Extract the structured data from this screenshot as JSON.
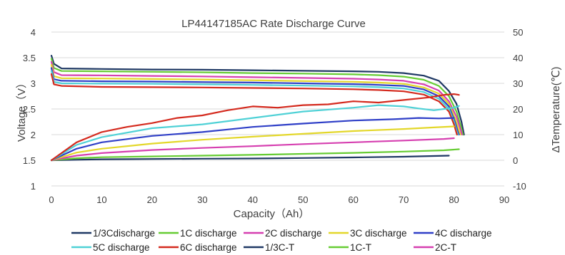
{
  "chart_data": {
    "type": "line",
    "title": "LP44147185AC Rate Discharge Curve",
    "xlabel": "Capacity（Ah）",
    "ylabel": "Voltage（V）",
    "y2label": "ΔTemperature(℃)",
    "xlim": [
      0,
      90
    ],
    "ylim": [
      1,
      4
    ],
    "y2lim": [
      -10,
      50
    ],
    "xticks": [
      "0",
      "10",
      "20",
      "30",
      "40",
      "50",
      "60",
      "70",
      "80",
      "90"
    ],
    "yticks": [
      "1",
      "1.5",
      "2",
      "2.5",
      "3",
      "3.5",
      "4"
    ],
    "y2ticks": [
      "-10",
      "0",
      "10",
      "20",
      "30",
      "40",
      "50"
    ],
    "grid": "horizontal",
    "legend_position": "bottom",
    "series": [
      {
        "name": "1/3Cdischarge",
        "axis": "left",
        "color": "#1f3864",
        "points": [
          [
            0,
            3.54
          ],
          [
            0.5,
            3.38
          ],
          [
            2,
            3.29
          ],
          [
            10,
            3.28
          ],
          [
            20,
            3.27
          ],
          [
            30,
            3.265
          ],
          [
            40,
            3.255
          ],
          [
            50,
            3.245
          ],
          [
            60,
            3.235
          ],
          [
            65,
            3.225
          ],
          [
            70,
            3.2
          ],
          [
            74,
            3.15
          ],
          [
            77,
            3.05
          ],
          [
            79,
            2.85
          ],
          [
            80.5,
            2.6
          ],
          [
            81.5,
            2.25
          ],
          [
            82,
            2.0
          ]
        ]
      },
      {
        "name": "1C discharge",
        "axis": "left",
        "color": "#66cc33",
        "points": [
          [
            0,
            3.48
          ],
          [
            0.5,
            3.3
          ],
          [
            2,
            3.24
          ],
          [
            10,
            3.235
          ],
          [
            20,
            3.225
          ],
          [
            30,
            3.215
          ],
          [
            40,
            3.2
          ],
          [
            50,
            3.19
          ],
          [
            60,
            3.175
          ],
          [
            65,
            3.16
          ],
          [
            70,
            3.13
          ],
          [
            74,
            3.07
          ],
          [
            77,
            2.95
          ],
          [
            79,
            2.75
          ],
          [
            80.5,
            2.45
          ],
          [
            81.4,
            2.15
          ],
          [
            81.8,
            2.0
          ]
        ]
      },
      {
        "name": "2C discharge",
        "axis": "left",
        "color": "#d63fb0",
        "points": [
          [
            0,
            3.42
          ],
          [
            0.5,
            3.22
          ],
          [
            2,
            3.16
          ],
          [
            10,
            3.155
          ],
          [
            20,
            3.145
          ],
          [
            30,
            3.135
          ],
          [
            40,
            3.12
          ],
          [
            50,
            3.105
          ],
          [
            60,
            3.09
          ],
          [
            65,
            3.075
          ],
          [
            70,
            3.05
          ],
          [
            74,
            2.98
          ],
          [
            77,
            2.86
          ],
          [
            79,
            2.65
          ],
          [
            80.5,
            2.35
          ],
          [
            81.3,
            2.1
          ],
          [
            81.6,
            2.0
          ]
        ]
      },
      {
        "name": "3C discharge",
        "axis": "left",
        "color": "#e3d72a",
        "points": [
          [
            0,
            3.36
          ],
          [
            0.5,
            3.14
          ],
          [
            2,
            3.1
          ],
          [
            10,
            3.095
          ],
          [
            20,
            3.085
          ],
          [
            30,
            3.075
          ],
          [
            40,
            3.06
          ],
          [
            50,
            3.045
          ],
          [
            60,
            3.03
          ],
          [
            65,
            3.015
          ],
          [
            70,
            2.99
          ],
          [
            74,
            2.92
          ],
          [
            77,
            2.8
          ],
          [
            79,
            2.6
          ],
          [
            80.3,
            2.3
          ],
          [
            81.0,
            2.08
          ],
          [
            81.3,
            2.0
          ]
        ]
      },
      {
        "name": "4C discharge",
        "axis": "left",
        "color": "#2f3fc7",
        "points": [
          [
            0,
            3.3
          ],
          [
            0.5,
            3.08
          ],
          [
            2,
            3.05
          ],
          [
            10,
            3.04
          ],
          [
            20,
            3.035
          ],
          [
            30,
            3.025
          ],
          [
            40,
            3.015
          ],
          [
            50,
            3.0
          ],
          [
            60,
            2.985
          ],
          [
            65,
            2.97
          ],
          [
            70,
            2.95
          ],
          [
            74,
            2.88
          ],
          [
            77,
            2.75
          ],
          [
            79,
            2.55
          ],
          [
            80.2,
            2.25
          ],
          [
            80.8,
            2.05
          ],
          [
            81.0,
            2.0
          ]
        ]
      },
      {
        "name": "5C discharge",
        "axis": "left",
        "color": "#4fd1d6",
        "points": [
          [
            0,
            3.24
          ],
          [
            0.5,
            3.03
          ],
          [
            2,
            3.0
          ],
          [
            10,
            2.995
          ],
          [
            20,
            2.99
          ],
          [
            30,
            2.98
          ],
          [
            40,
            2.97
          ],
          [
            50,
            2.955
          ],
          [
            60,
            2.94
          ],
          [
            65,
            2.925
          ],
          [
            70,
            2.9
          ],
          [
            74,
            2.83
          ],
          [
            77,
            2.7
          ],
          [
            79,
            2.5
          ],
          [
            80,
            2.25
          ],
          [
            80.6,
            2.05
          ],
          [
            80.8,
            2.0
          ]
        ]
      },
      {
        "name": "6C discharge",
        "axis": "left",
        "color": "#d42a1e",
        "points": [
          [
            0,
            3.18
          ],
          [
            0.5,
            2.98
          ],
          [
            2,
            2.95
          ],
          [
            10,
            2.93
          ],
          [
            20,
            2.925
          ],
          [
            30,
            2.92
          ],
          [
            40,
            2.91
          ],
          [
            50,
            2.9
          ],
          [
            60,
            2.885
          ],
          [
            65,
            2.87
          ],
          [
            70,
            2.845
          ],
          [
            74,
            2.78
          ],
          [
            77,
            2.65
          ],
          [
            79,
            2.45
          ],
          [
            80,
            2.2
          ],
          [
            80.5,
            2.03
          ],
          [
            80.6,
            2.0
          ]
        ]
      },
      {
        "name": "1/3C-T",
        "axis": "right",
        "color": "#1f3864",
        "points": [
          [
            0,
            0
          ],
          [
            5,
            0.2
          ],
          [
            10,
            0.4
          ],
          [
            20,
            0.5
          ],
          [
            30,
            0.6
          ],
          [
            40,
            0.7
          ],
          [
            50,
            0.9
          ],
          [
            60,
            1.1
          ],
          [
            70,
            1.4
          ],
          [
            79,
            1.8
          ]
        ]
      },
      {
        "name": "1C-T",
        "axis": "right",
        "color": "#66cc33",
        "points": [
          [
            0,
            0
          ],
          [
            5,
            0.8
          ],
          [
            10,
            1.2
          ],
          [
            20,
            1.5
          ],
          [
            30,
            1.8
          ],
          [
            40,
            2.1
          ],
          [
            50,
            2.5
          ],
          [
            60,
            2.9
          ],
          [
            70,
            3.4
          ],
          [
            78,
            3.9
          ],
          [
            81,
            4.3
          ]
        ]
      },
      {
        "name": "2C-T",
        "axis": "right",
        "color": "#d63fb0",
        "points": [
          [
            0,
            0
          ],
          [
            5,
            1.8
          ],
          [
            10,
            2.8
          ],
          [
            20,
            4.0
          ],
          [
            30,
            4.8
          ],
          [
            40,
            5.5
          ],
          [
            50,
            6.3
          ],
          [
            60,
            7.0
          ],
          [
            70,
            7.7
          ],
          [
            78,
            8.3
          ],
          [
            80,
            8.6
          ]
        ]
      },
      {
        "name": "",
        "axis": "right",
        "color": "#e3d72a",
        "points": [
          [
            0,
            0
          ],
          [
            5,
            3.0
          ],
          [
            10,
            4.5
          ],
          [
            20,
            6.5
          ],
          [
            30,
            8.0
          ],
          [
            40,
            9.2
          ],
          [
            50,
            10.3
          ],
          [
            60,
            11.4
          ],
          [
            70,
            12.2
          ],
          [
            76,
            12.8
          ],
          [
            80,
            13.2
          ]
        ]
      },
      {
        "name": "",
        "axis": "right",
        "color": "#2f3fc7",
        "points": [
          [
            0,
            0
          ],
          [
            5,
            4.5
          ],
          [
            10,
            7.0
          ],
          [
            20,
            9.5
          ],
          [
            30,
            11.0
          ],
          [
            35,
            12.0
          ],
          [
            40,
            13.0
          ],
          [
            50,
            14.3
          ],
          [
            60,
            15.5
          ],
          [
            68,
            16.0
          ],
          [
            73,
            16.5
          ],
          [
            77,
            16.3
          ],
          [
            80,
            16.5
          ]
        ]
      },
      {
        "name": "",
        "axis": "right",
        "color": "#4fd1d6",
        "points": [
          [
            0,
            0
          ],
          [
            5,
            6.0
          ],
          [
            10,
            9.0
          ],
          [
            20,
            12.5
          ],
          [
            30,
            14.0
          ],
          [
            40,
            16.5
          ],
          [
            50,
            19.0
          ],
          [
            60,
            20.5
          ],
          [
            65,
            21.5
          ],
          [
            70,
            21.0
          ],
          [
            73,
            20.2
          ],
          [
            76,
            19.5
          ],
          [
            78,
            20.0
          ],
          [
            80,
            20.5
          ],
          [
            81,
            21.2
          ]
        ]
      },
      {
        "name": "",
        "axis": "right",
        "color": "#d42a1e",
        "points": [
          [
            0,
            0
          ],
          [
            5,
            7.0
          ],
          [
            10,
            11.0
          ],
          [
            15,
            13.0
          ],
          [
            20,
            14.5
          ],
          [
            25,
            16.5
          ],
          [
            30,
            17.5
          ],
          [
            35,
            19.5
          ],
          [
            40,
            21.0
          ],
          [
            45,
            20.5
          ],
          [
            50,
            21.5
          ],
          [
            55,
            21.8
          ],
          [
            60,
            23.0
          ],
          [
            65,
            22.5
          ],
          [
            70,
            23.5
          ],
          [
            75,
            24.5
          ],
          [
            78,
            25.5
          ],
          [
            80,
            25.8
          ],
          [
            81,
            25.5
          ]
        ]
      }
    ],
    "legend": [
      {
        "label": "1/3Cdischarge",
        "color": "#1f3864"
      },
      {
        "label": "1C discharge",
        "color": "#66cc33"
      },
      {
        "label": "2C discharge",
        "color": "#d63fb0"
      },
      {
        "label": "3C discharge",
        "color": "#e3d72a"
      },
      {
        "label": "4C discharge",
        "color": "#2f3fc7"
      },
      {
        "label": "5C discharge",
        "color": "#4fd1d6"
      },
      {
        "label": "6C discharge",
        "color": "#d42a1e"
      },
      {
        "label": "1/3C-T",
        "color": "#1f3864"
      },
      {
        "label": "1C-T",
        "color": "#66cc33"
      },
      {
        "label": "2C-T",
        "color": "#d63fb0"
      }
    ]
  }
}
